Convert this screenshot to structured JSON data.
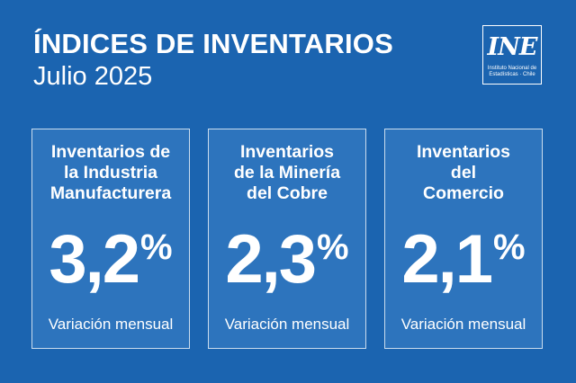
{
  "header": {
    "title": "ÍNDICES DE INVENTARIOS",
    "subtitle": "Julio 2025"
  },
  "logo": {
    "mark": "INE",
    "text": "Instituto Nacional de\nEstadísticas · Chile"
  },
  "cards": [
    {
      "title": "Inventarios de\nla Industria\nManufacturera",
      "value": "3,2",
      "unit": "%",
      "label": "Variación mensual"
    },
    {
      "title": "Inventarios\nde la Minería\ndel Cobre",
      "value": "2,3",
      "unit": "%",
      "label": "Variación mensual"
    },
    {
      "title": "Inventarios\ndel\nComercio",
      "value": "2,1",
      "unit": "%",
      "label": "Variación mensual"
    }
  ],
  "colors": {
    "background": "#1b64b0",
    "card_background": "#2d74bd",
    "text": "#ffffff"
  }
}
